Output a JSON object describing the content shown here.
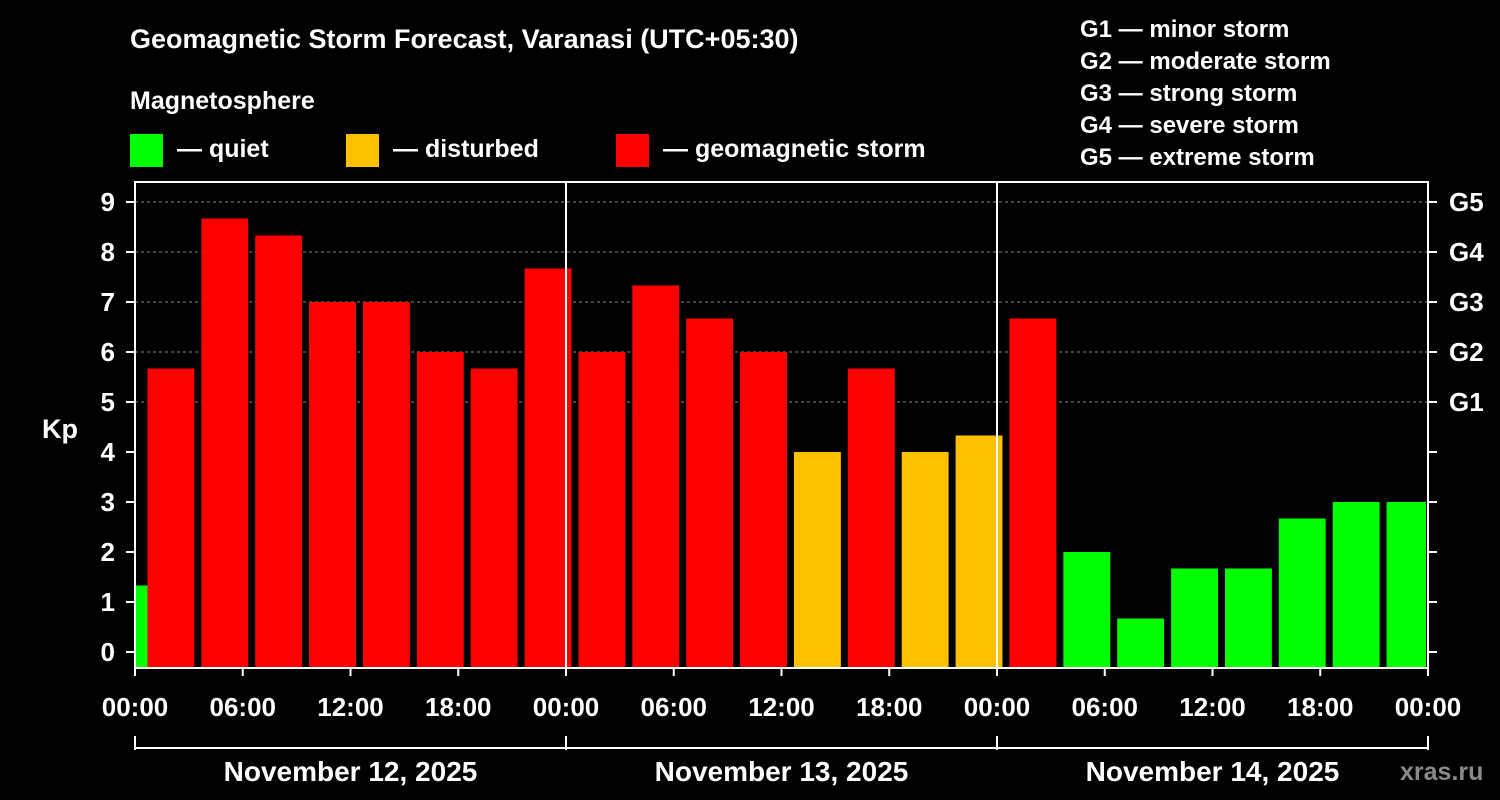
{
  "colors": {
    "background": "#000000",
    "quiet": "#00ff00",
    "disturbed": "#ffc000",
    "storm": "#ff0000",
    "foreground": "#ffffff"
  },
  "legend": {
    "heading": "Magnetosphere",
    "items": [
      {
        "key": "quiet",
        "label": "— quiet"
      },
      {
        "key": "disturbed",
        "label": "— disturbed"
      },
      {
        "key": "storm",
        "label": "— geomagnetic storm"
      }
    ]
  },
  "storm_scale": [
    "G1 — minor storm",
    "G2 — moderate storm",
    "G3 — strong storm",
    "G4 — severe storm",
    "G5 — extreme storm"
  ],
  "watermark": "xras.ru",
  "chart_data": {
    "type": "bar",
    "title": "Geomagnetic Storm Forecast, Varanasi (UTC+05:30)",
    "ylabel": "Kp",
    "xlabel": "",
    "ylim": [
      0,
      9
    ],
    "yticks": [
      "0",
      "1",
      "2",
      "3",
      "4",
      "5",
      "6",
      "7",
      "8",
      "9"
    ],
    "right_axis_labels": [
      {
        "kp": 5,
        "label": "G1"
      },
      {
        "kp": 6,
        "label": "G2"
      },
      {
        "kp": 7,
        "label": "G3"
      },
      {
        "kp": 8,
        "label": "G4"
      },
      {
        "kp": 9,
        "label": "G5"
      }
    ],
    "grid": "horizontal dashed from Kp 5 to 9",
    "time_ticks": [
      "00:00",
      "06:00",
      "12:00",
      "18:00",
      "00:00",
      "06:00",
      "12:00",
      "18:00",
      "00:00",
      "06:00",
      "12:00",
      "18:00",
      "00:00"
    ],
    "dates": [
      "November 12, 2025",
      "November 13, 2025",
      "November 14, 2025"
    ],
    "hours_start": 0,
    "hours_span": 72,
    "interval_hours": 3,
    "first_bar_hours": 0.5,
    "last_bar_hours": 0.5,
    "bars": [
      {
        "start_hour": 0,
        "kp": 1.33,
        "level": "quiet"
      },
      {
        "start_hour": 0.5,
        "kp": 5.67,
        "level": "storm"
      },
      {
        "start_hour": 3.5,
        "kp": 8.67,
        "level": "storm"
      },
      {
        "start_hour": 6.5,
        "kp": 8.33,
        "level": "storm"
      },
      {
        "start_hour": 9.5,
        "kp": 7.0,
        "level": "storm"
      },
      {
        "start_hour": 12.5,
        "kp": 7.0,
        "level": "storm"
      },
      {
        "start_hour": 15.5,
        "kp": 6.0,
        "level": "storm"
      },
      {
        "start_hour": 18.5,
        "kp": 5.67,
        "level": "storm"
      },
      {
        "start_hour": 21.5,
        "kp": 7.67,
        "level": "storm"
      },
      {
        "start_hour": 24.5,
        "kp": 6.0,
        "level": "storm"
      },
      {
        "start_hour": 27.5,
        "kp": 7.33,
        "level": "storm"
      },
      {
        "start_hour": 30.5,
        "kp": 6.67,
        "level": "storm"
      },
      {
        "start_hour": 33.5,
        "kp": 6.0,
        "level": "storm"
      },
      {
        "start_hour": 36.5,
        "kp": 4.0,
        "level": "disturbed"
      },
      {
        "start_hour": 39.5,
        "kp": 5.67,
        "level": "storm"
      },
      {
        "start_hour": 42.5,
        "kp": 4.0,
        "level": "disturbed"
      },
      {
        "start_hour": 45.5,
        "kp": 4.33,
        "level": "disturbed"
      },
      {
        "start_hour": 48.5,
        "kp": 6.67,
        "level": "storm"
      },
      {
        "start_hour": 51.5,
        "kp": 2.0,
        "level": "quiet"
      },
      {
        "start_hour": 54.5,
        "kp": 0.67,
        "level": "quiet"
      },
      {
        "start_hour": 57.5,
        "kp": 1.67,
        "level": "quiet"
      },
      {
        "start_hour": 60.5,
        "kp": 1.67,
        "level": "quiet"
      },
      {
        "start_hour": 63.5,
        "kp": 2.67,
        "level": "quiet"
      },
      {
        "start_hour": 66.5,
        "kp": 3.0,
        "level": "quiet"
      },
      {
        "start_hour": 69.5,
        "kp": 3.0,
        "level": "quiet"
      }
    ]
  }
}
